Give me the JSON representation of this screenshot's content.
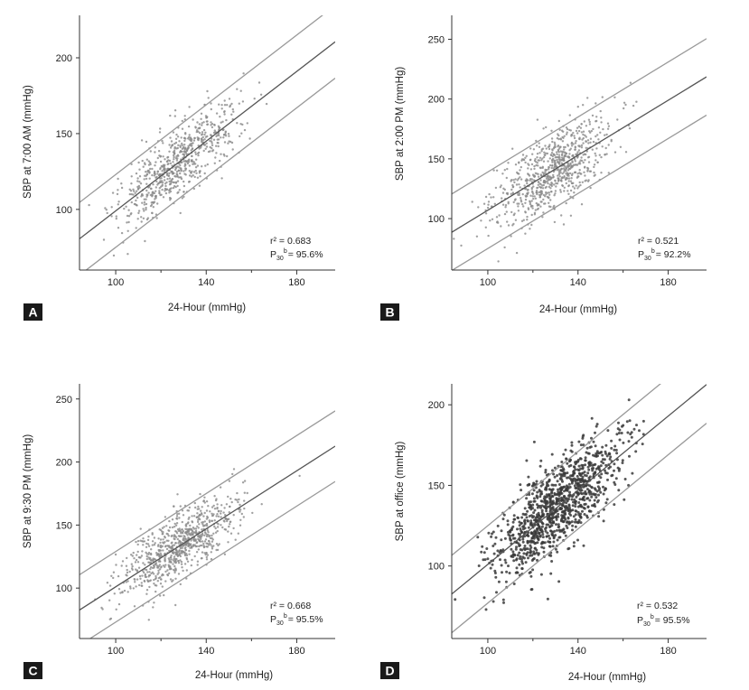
{
  "figure": {
    "title": ""
  },
  "chart_data": [
    {
      "panel": "A",
      "type": "scatter",
      "title": "",
      "xlabel": "24-Hour (mmHg)",
      "ylabel": "SBP at 7:00 AM (mmHg)",
      "xlim": [
        84,
        197
      ],
      "ylim": [
        60,
        228
      ],
      "xticks": [
        100,
        140,
        180
      ],
      "yticks": [
        100,
        150,
        200
      ],
      "regression": {
        "slope": 1.15,
        "intercept": -16
      },
      "band_offset": 24,
      "point_style": "light",
      "points_summary": {
        "n": 700,
        "x_mean": 128,
        "x_sd": 13,
        "y_noise_sd": 12
      },
      "stats": {
        "r2": "r² = 0.683",
        "p30_base": "P",
        "p30_sub": "30",
        "p30_sup": "b",
        "p30_value": "= 95.6%"
      }
    },
    {
      "panel": "B",
      "type": "scatter",
      "title": "",
      "xlabel": "24-Hour (mmHg)",
      "ylabel": "SBP at 2:00 PM (mmHg)",
      "xlim": [
        84,
        197
      ],
      "ylim": [
        57,
        270
      ],
      "xticks": [
        100,
        140,
        180
      ],
      "yticks": [
        100,
        150,
        200,
        250
      ],
      "regression": {
        "slope": 1.15,
        "intercept": -8
      },
      "band_offset": 32,
      "point_style": "light",
      "points_summary": {
        "n": 800,
        "x_mean": 128,
        "x_sd": 13,
        "y_noise_sd": 16
      },
      "stats": {
        "r2": "r² = 0.521",
        "p30_base": "P",
        "p30_sub": "30",
        "p30_sup": "b",
        "p30_value": "= 92.2%"
      }
    },
    {
      "panel": "C",
      "type": "scatter",
      "title": "",
      "xlabel": "24-Hour (mmHg)",
      "ylabel": "SBP at 9:30 PM (mmHg)",
      "xlim": [
        84,
        197
      ],
      "ylim": [
        60,
        262
      ],
      "xticks": [
        100,
        140,
        180
      ],
      "yticks": [
        100,
        150,
        200,
        250
      ],
      "regression": {
        "slope": 1.15,
        "intercept": -14
      },
      "band_offset": 28,
      "point_style": "light",
      "points_summary": {
        "n": 800,
        "x_mean": 128,
        "x_sd": 13,
        "y_noise_sd": 13
      },
      "stats": {
        "r2": "r² = 0.668",
        "p30_base": "P",
        "p30_sub": "30",
        "p30_sup": "b",
        "p30_value": "= 95.5%"
      }
    },
    {
      "panel": "D",
      "type": "scatter",
      "title": "",
      "xlabel": "24-Hour (mmHg)",
      "ylabel": "SBP at office (mmHg)",
      "xlim": [
        84,
        197
      ],
      "ylim": [
        55,
        213
      ],
      "xticks": [
        100,
        140,
        180
      ],
      "yticks": [
        100,
        150,
        200
      ],
      "regression": {
        "slope": 1.15,
        "intercept": -14
      },
      "band_offset": 24,
      "point_style": "dark",
      "points_summary": {
        "n": 1100,
        "x_mean": 130,
        "x_sd": 14,
        "y_noise_sd": 14
      },
      "stats": {
        "r2": "r² = 0.532",
        "p30_base": "P",
        "p30_sub": "30",
        "p30_sup": "b",
        "p30_value": "= 95.5%"
      }
    }
  ]
}
